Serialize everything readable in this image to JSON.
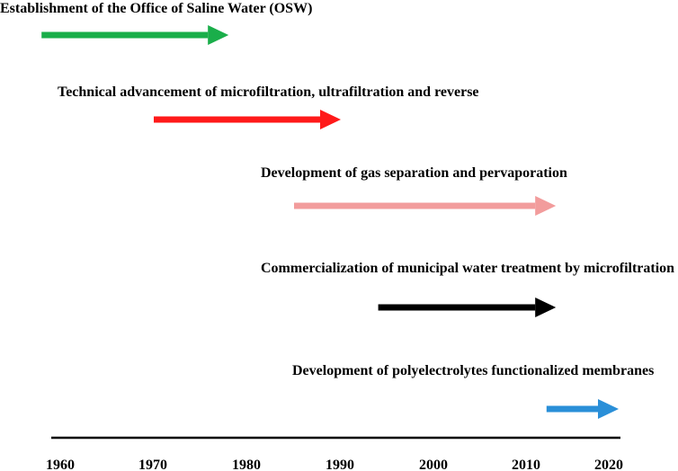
{
  "timeline": {
    "ticks": [
      "1960",
      "1970",
      "1980",
      "1990",
      "2000",
      "2010",
      "2020"
    ]
  },
  "events": [
    {
      "label": "Establishment of the Office of Saline Water (OSW)",
      "start": 1958,
      "end": 1978,
      "color": "#1aae4a"
    },
    {
      "label": "Technical advancement of microfiltration, ultrafiltration and reverse",
      "start": 1970,
      "end": 1990,
      "color": "#ff1a1a"
    },
    {
      "label": "Development of gas separation and pervaporation",
      "start": 1985,
      "end": 2013,
      "color": "#f29c9c"
    },
    {
      "label": "Commercialization of municipal water treatment by microfiltration",
      "start": 1994,
      "end": 2013,
      "color": "#000000"
    },
    {
      "label": "Development of polyelectrolytes functionalized membranes",
      "start": 2012,
      "end": 2020,
      "color": "#2a8fd8"
    }
  ]
}
